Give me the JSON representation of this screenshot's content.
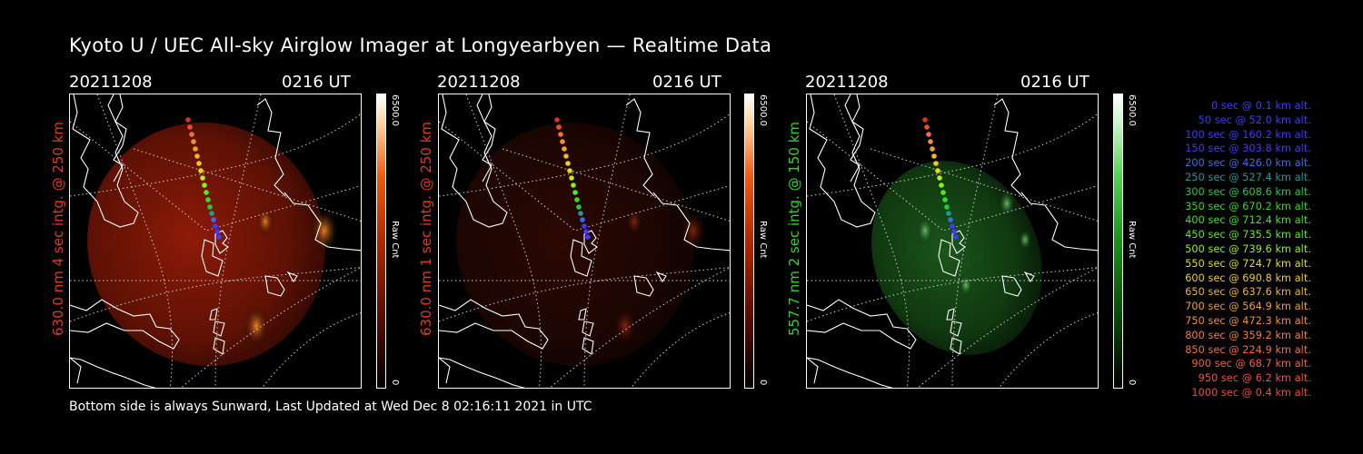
{
  "title": "Kyoto U / UEC All-sky Airglow Imager at Longyearbyen — Realtime Data",
  "panels": [
    {
      "date": "20211208",
      "time": "0216 UT",
      "side_label": "630.0 nm 4 sec intg. @ 250 km",
      "label_color": "#e03a1a",
      "cbar_max": "6500.0",
      "cbar_min": "0",
      "cbar_name": "Raw Cnt",
      "scheme": "red"
    },
    {
      "date": "20211208",
      "time": "0216 UT",
      "side_label": "630.0 nm 1 sec intg. @ 250 km",
      "label_color": "#e03a1a",
      "cbar_max": "6500.0",
      "cbar_min": "0",
      "cbar_name": "Raw Cnt",
      "scheme": "dimred"
    },
    {
      "date": "20211208",
      "time": "0216 UT",
      "side_label": "557.7 nm 2 sec intg. @ 150 km",
      "label_color": "#2fd42f",
      "cbar_max": "6500.0",
      "cbar_min": "0",
      "cbar_name": "Raw Cnt",
      "scheme": "green"
    }
  ],
  "footer": "Bottom side is always Sunward, Last Updated at Wed Dec  8 02:16:11 2021 in UTC",
  "legend": [
    {
      "text": "0 sec @    0.1 km alt.",
      "color": "#3b3bff"
    },
    {
      "text": "50 sec @   52.0 km alt.",
      "color": "#3b3bff"
    },
    {
      "text": "100 sec @  160.2 km alt.",
      "color": "#3b3bff"
    },
    {
      "text": "150 sec @  303.8 km alt.",
      "color": "#3b3bff"
    },
    {
      "text": "200 sec @  426.0 km alt.",
      "color": "#3a6ee8"
    },
    {
      "text": "250 sec @  527.4 km alt.",
      "color": "#1f9a9a"
    },
    {
      "text": "300 sec @  608.6 km alt.",
      "color": "#22cc44"
    },
    {
      "text": "350 sec @  670.2 km alt.",
      "color": "#33dd22"
    },
    {
      "text": "400 sec @  712.4 km alt.",
      "color": "#44e022"
    },
    {
      "text": "450 sec @  735.5 km alt.",
      "color": "#66e622"
    },
    {
      "text": "500 sec @  739.6 km alt.",
      "color": "#99ee22"
    },
    {
      "text": "550 sec @  724.7 km alt.",
      "color": "#dddd22"
    },
    {
      "text": "600 sec @  690.8 km alt.",
      "color": "#eecc22"
    },
    {
      "text": "650 sec @  637.6 km alt.",
      "color": "#f0b22a"
    },
    {
      "text": "700 sec @  564.9 km alt.",
      "color": "#f0a030"
    },
    {
      "text": "750 sec @  472.3 km alt.",
      "color": "#f09038"
    },
    {
      "text": "800 sec @  359.2 km alt.",
      "color": "#f08040"
    },
    {
      "text": "850 sec @  224.9 km alt.",
      "color": "#f07040"
    },
    {
      "text": "900 sec @   68.7 km alt.",
      "color": "#f06040"
    },
    {
      "text": "950 sec @    6.2 km alt.",
      "color": "#f05040"
    },
    {
      "text": "1000 sec @    0.4 km alt.",
      "color": "#f04840"
    }
  ]
}
